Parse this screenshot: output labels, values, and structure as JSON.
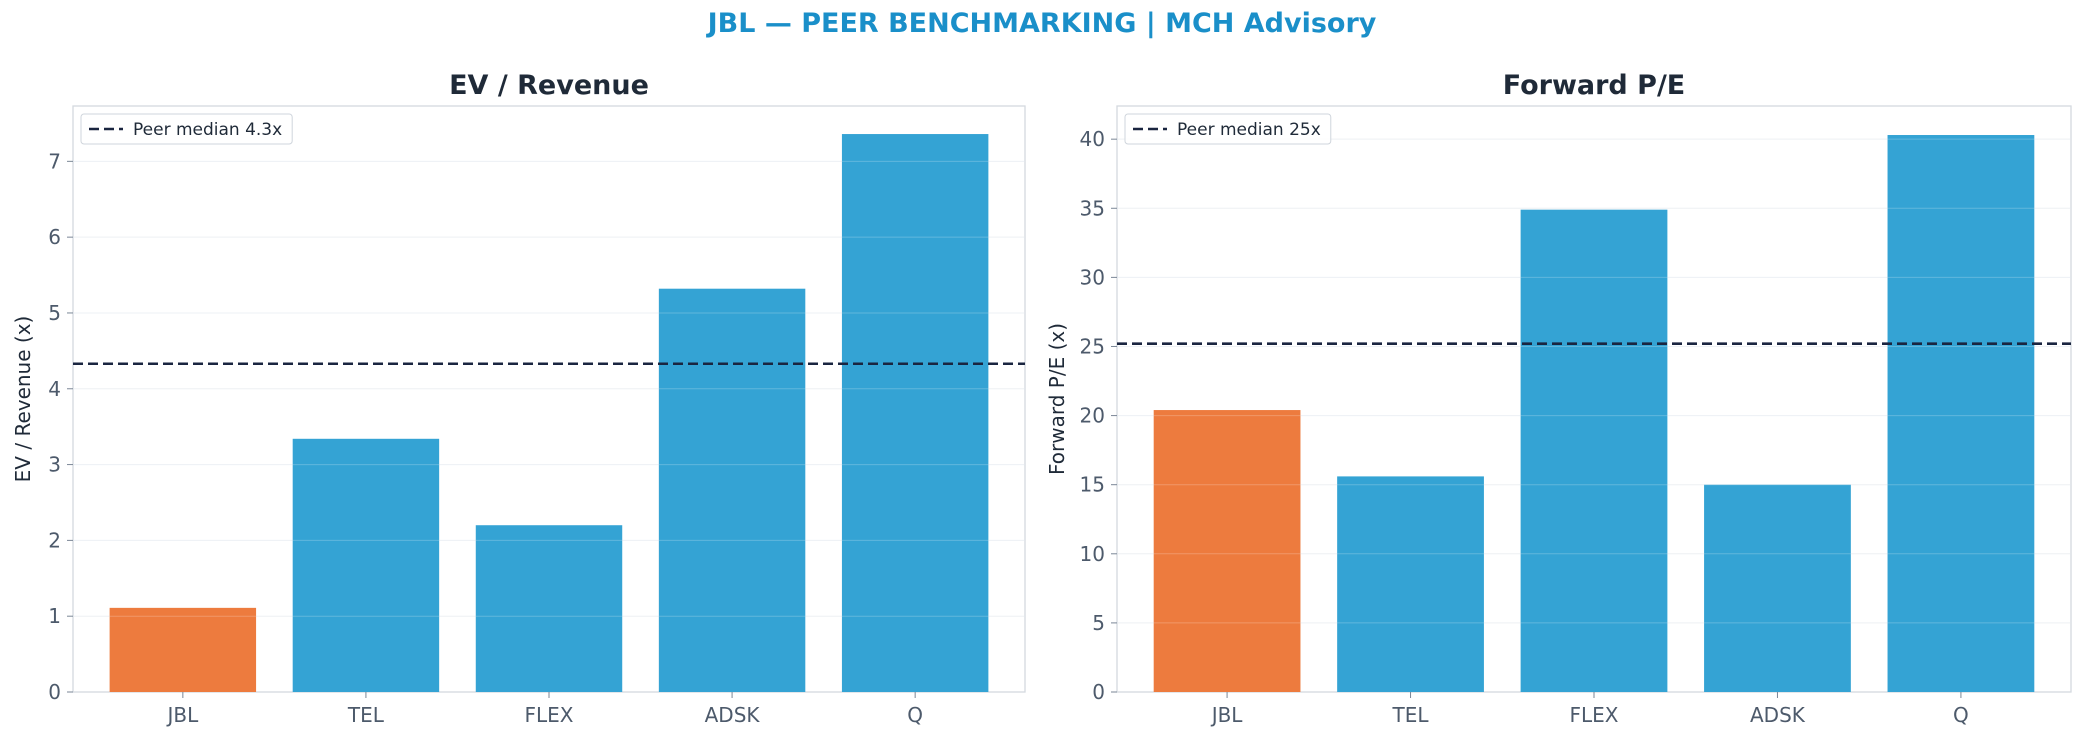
{
  "figure_title": "JBL — PEER BENCHMARKING | MCH Advisory",
  "colors": {
    "highlight": "#ed7b3e",
    "peer": "#34a3d4",
    "median_line": "#1a2540",
    "title": "#1a8fc9"
  },
  "chart_data": [
    {
      "type": "bar",
      "title": "EV / Revenue",
      "ylabel": "EV / Revenue (x)",
      "xlabel": "",
      "categories": [
        "JBL",
        "TEL",
        "FLEX",
        "ADSK",
        "Q"
      ],
      "values": [
        1.11,
        3.34,
        2.2,
        5.32,
        7.36
      ],
      "highlight": [
        "JBL"
      ],
      "ylim": [
        0,
        7.73
      ],
      "yticks": [
        0,
        1,
        2,
        3,
        4,
        5,
        6,
        7
      ],
      "ytick_labels": [
        "0",
        "1",
        "2",
        "3",
        "4",
        "5",
        "6",
        "7"
      ],
      "median": 4.33,
      "legend": {
        "label": "Peer median 4.3x",
        "position": "upper-left"
      },
      "grid": true
    },
    {
      "type": "bar",
      "title": "Forward P/E",
      "ylabel": "Forward P/E (x)",
      "xlabel": "",
      "categories": [
        "JBL",
        "TEL",
        "FLEX",
        "ADSK",
        "Q"
      ],
      "values": [
        20.4,
        15.6,
        34.9,
        15.0,
        40.3
      ],
      "highlight": [
        "JBL"
      ],
      "ylim": [
        0,
        42.4
      ],
      "yticks": [
        0,
        5,
        10,
        15,
        20,
        25,
        30,
        35,
        40
      ],
      "ytick_labels": [
        "0",
        "5",
        "10",
        "15",
        "20",
        "25",
        "30",
        "35",
        "40"
      ],
      "median": 25.2,
      "legend": {
        "label": "Peer median 25x",
        "position": "upper-left"
      },
      "grid": true
    }
  ]
}
